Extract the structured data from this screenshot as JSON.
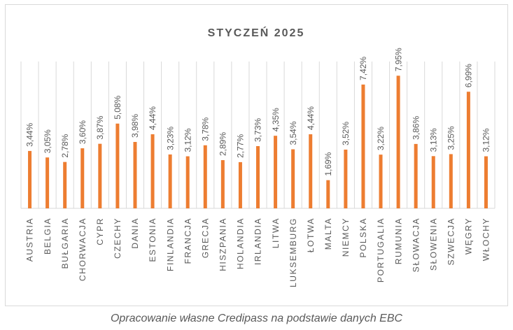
{
  "chart_data": {
    "type": "bar",
    "title": "STYCZEŃ 2025",
    "categories": [
      "AUSTRIA",
      "BELGIA",
      "BUŁGARIA",
      "CHORWACJA",
      "CYPR",
      "CZECHY",
      "DANIA",
      "ESTONIA",
      "FINLANDIA",
      "FRANCJA",
      "GRECJA",
      "HISZPANIA",
      "HOLANDIA",
      "IRLANDIA",
      "LITWA",
      "LUKSEMBURG",
      "ŁOTWA",
      "MALTA",
      "NIEMCY",
      "POLSKA",
      "PORTUGALIA",
      "RUMUNIA",
      "SŁOWACJA",
      "SŁOWENIA",
      "SZWECJA",
      "WĘGRY",
      "WŁOCHY"
    ],
    "values": [
      3.44,
      3.05,
      2.78,
      3.6,
      3.87,
      5.08,
      3.98,
      4.44,
      3.23,
      3.12,
      3.78,
      2.89,
      2.77,
      3.73,
      4.35,
      3.54,
      4.44,
      1.69,
      3.52,
      7.42,
      3.22,
      7.95,
      3.86,
      3.13,
      3.25,
      6.99,
      3.12
    ],
    "data_labels": [
      "3,44%",
      "3,05%",
      "2,78%",
      "3,60%",
      "3,87%",
      "5,08%",
      "3,98%",
      "4,44%",
      "3,23%",
      "3,12%",
      "3,78%",
      "2,89%",
      "2,77%",
      "3,73%",
      "4,35%",
      "3,54%",
      "4,44%",
      "1,69%",
      "3,52%",
      "7,42%",
      "3,22%",
      "7,95%",
      "3,86%",
      "3,13%",
      "3,25%",
      "6,99%",
      "3,12%"
    ],
    "ylim": [
      0,
      8.8
    ],
    "grid": "vertical",
    "bar_color": "#ED7D31",
    "grid_color": "#d9d9d9",
    "text_color": "#595959"
  },
  "caption": "Opracowanie własne Credipass na podstawie danych EBC"
}
